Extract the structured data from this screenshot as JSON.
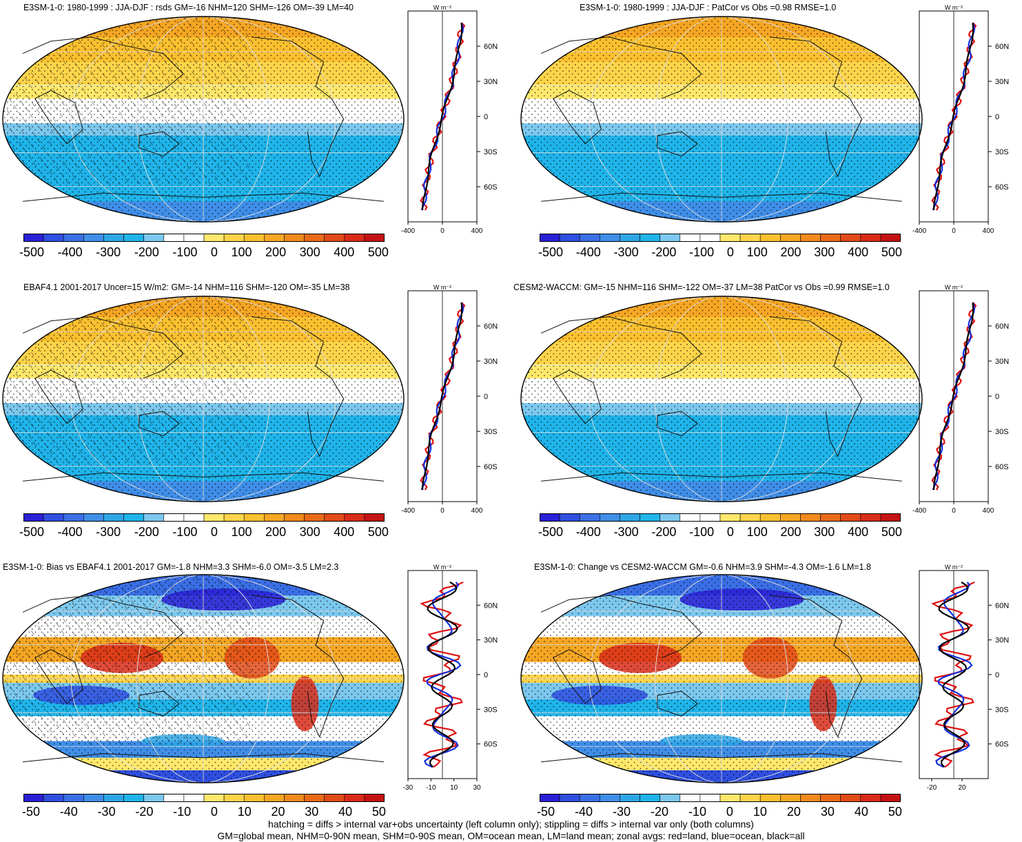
{
  "panels": [
    {
      "id": "p1",
      "title": "E3SM-1-0: 1980-1999 : JJA-DJF : rsds GM=-16 NHM=120 SHM=-126 OM=-39 LM=40",
      "map_type": "seasonal",
      "hatch": true,
      "colorbar_labels": [
        "-500",
        "-400",
        "-300",
        "-200",
        "-100",
        "0",
        "100",
        "200",
        "300",
        "400",
        "500"
      ],
      "zonal_unit": "W m⁻²",
      "zonal_xticks": [
        "-400",
        "0",
        "400"
      ],
      "zonal_yticks": [
        "60N",
        "30N",
        "0",
        "30S",
        "60S"
      ]
    },
    {
      "id": "p2",
      "title": "E3SM-1-0: 1980-1999 : JJA-DJF : PatCor vs Obs =0.98 RMSE=1.0",
      "map_type": "seasonal",
      "hatch": false,
      "colorbar_labels": [
        "-500",
        "-400",
        "-300",
        "-200",
        "-100",
        "0",
        "100",
        "200",
        "300",
        "400",
        "500"
      ],
      "zonal_unit": "W m⁻²",
      "zonal_xticks": [
        "-400",
        "0",
        "400"
      ],
      "zonal_yticks": [
        "60N",
        "30N",
        "0",
        "30S",
        "60S"
      ]
    },
    {
      "id": "p3",
      "title": "EBAF4.1 2001-2017 Uncer=15 W/m2: GM=-14 NHM=116 SHM=-120 OM=-35 LM=38",
      "map_type": "seasonal",
      "hatch": true,
      "colorbar_labels": [
        "-500",
        "-400",
        "-300",
        "-200",
        "-100",
        "0",
        "100",
        "200",
        "300",
        "400",
        "500"
      ],
      "zonal_unit": "W m⁻²",
      "zonal_xticks": [
        "-400",
        "0",
        "400"
      ],
      "zonal_yticks": [
        "60N",
        "30N",
        "0",
        "30S",
        "60S"
      ]
    },
    {
      "id": "p4",
      "title": "CESM2-WACCM: GM=-15 NHM=116 SHM=-122 OM=-37 LM=38 PatCor vs Obs =0.99 RMSE=1.0",
      "map_type": "seasonal",
      "hatch": false,
      "colorbar_labels": [
        "-500",
        "-400",
        "-300",
        "-200",
        "-100",
        "0",
        "100",
        "200",
        "300",
        "400",
        "500"
      ],
      "zonal_unit": "W m⁻²",
      "zonal_xticks": [
        "-400",
        "0",
        "400"
      ],
      "zonal_yticks": [
        "60N",
        "30N",
        "0",
        "30S",
        "60S"
      ]
    },
    {
      "id": "p5",
      "title": "E3SM-1-0: Bias vs EBAF4.1 2001-2017 GM=-1.8 NHM=3.3 SHM=-6.0 OM=-3.5 LM=2.3",
      "map_type": "bias",
      "hatch": true,
      "colorbar_labels": [
        "-50",
        "-40",
        "-30",
        "-20",
        "-10",
        "0",
        "10",
        "20",
        "30",
        "40",
        "50"
      ],
      "zonal_unit": "W m⁻²",
      "zonal_xticks": [
        "-30",
        "-10",
        "10",
        "30"
      ],
      "zonal_yticks": [
        "60N",
        "30N",
        "0",
        "30S",
        "60S"
      ]
    },
    {
      "id": "p6",
      "title": "E3SM-1-0: Change vs CESM2-WACCM GM=-0.6 NHM=3.9 SHM=-4.3 OM=-1.6 LM=1.8",
      "map_type": "change",
      "hatch": false,
      "colorbar_labels": [
        "-50",
        "-40",
        "-30",
        "-20",
        "-10",
        "0",
        "10",
        "20",
        "30",
        "40",
        "50"
      ],
      "zonal_unit": "W m⁻²",
      "zonal_xticks": [
        "-20",
        "20"
      ],
      "zonal_yticks": [
        "60N",
        "30N",
        "0",
        "30S",
        "60S"
      ]
    }
  ],
  "colorbar_colors": [
    "#2a1fd6",
    "#2f4fe0",
    "#3a6fe6",
    "#3f8ee8",
    "#2ea6e6",
    "#1fb4ea",
    "#7cc8ee",
    "#ffffff",
    "#ffffff",
    "#ffe86b",
    "#fdd44a",
    "#fbc02f",
    "#f5a623",
    "#f08a1c",
    "#ea6a18",
    "#e24a17",
    "#d92b18",
    "#c41212"
  ],
  "footer": {
    "line1": "hatching = diffs > internal var+obs uncertainty (left column only); stippling = diffs > internal var only (both columns)",
    "line2": "GM=global mean, NHM=0-90N mean, SHM=0-90S mean, OM=ocean mean, LM=land mean; zonal avgs: red=land, blue=ocean, black=all"
  }
}
